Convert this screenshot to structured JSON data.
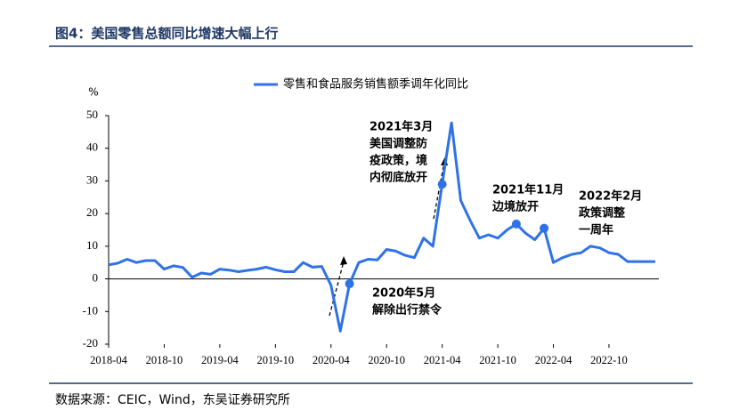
{
  "title": "图4：美国零售总额同比增速大幅上行",
  "source": "数据来源：CEIC，Wind，东吴证券研究所",
  "chart_data": {
    "type": "line",
    "y_unit": "%",
    "x": [
      "2018-04",
      "2018-05",
      "2018-06",
      "2018-07",
      "2018-08",
      "2018-09",
      "2018-10",
      "2018-11",
      "2018-12",
      "2019-01",
      "2019-02",
      "2019-03",
      "2019-04",
      "2019-05",
      "2019-06",
      "2019-07",
      "2019-08",
      "2019-09",
      "2019-10",
      "2019-11",
      "2019-12",
      "2020-01",
      "2020-02",
      "2020-03",
      "2020-04",
      "2020-05",
      "2020-06",
      "2020-07",
      "2020-08",
      "2020-09",
      "2020-10",
      "2020-11",
      "2020-12",
      "2021-01",
      "2021-02",
      "2021-03",
      "2021-04",
      "2021-05",
      "2021-06",
      "2021-07",
      "2021-08",
      "2021-09",
      "2021-10",
      "2021-11",
      "2021-12",
      "2022-01",
      "2022-02",
      "2022-03",
      "2022-04",
      "2022-05",
      "2022-06",
      "2022-07",
      "2022-08",
      "2022-09",
      "2022-10",
      "2022-11",
      "2022-12",
      "2023-01",
      "2023-02",
      "2023-03"
    ],
    "series": [
      {
        "name": "零售和食品服务销售额季调年化同比",
        "color": "#2f72e8",
        "values": [
          4.3,
          4.8,
          6.0,
          5.0,
          5.6,
          5.6,
          3.0,
          4.0,
          3.5,
          0.5,
          1.8,
          1.4,
          3.0,
          2.7,
          2.2,
          2.6,
          3.0,
          3.6,
          2.8,
          2.2,
          2.2,
          5.0,
          3.6,
          3.8,
          -2.0,
          -16.0,
          -1.5,
          5.0,
          6.0,
          5.8,
          9.0,
          8.5,
          7.2,
          6.5,
          12.5,
          10.0,
          29.0,
          47.8,
          24.0,
          18.0,
          12.5,
          13.5,
          12.5,
          15.0,
          16.8,
          14.0,
          12.0,
          15.5,
          5.0,
          6.5,
          7.5,
          8.0,
          10.0,
          9.5,
          8.0,
          7.5,
          5.3,
          5.3,
          5.3,
          5.3
        ]
      }
    ],
    "xticks": [
      "2018-04",
      "2018-10",
      "2019-04",
      "2019-10",
      "2020-04",
      "2020-10",
      "2021-04",
      "2021-10",
      "2022-04",
      "2022-10"
    ],
    "ylim": [
      -20,
      50
    ],
    "yticks": [
      -20,
      -10,
      0,
      10,
      20,
      30,
      40,
      50
    ],
    "annotations": [
      {
        "lines": [
          "2020年5月",
          "解除出行禁令"
        ],
        "x": "2020-06"
      },
      {
        "lines": [
          "2021年3月",
          "美国调整防",
          "疫政策，境",
          "内彻底放开"
        ],
        "x": "2021-04"
      },
      {
        "lines": [
          "2021年11月",
          "边境放开"
        ],
        "x": "2021-12"
      },
      {
        "lines": [
          "2022年2月",
          "政策调整",
          "一周年"
        ],
        "x": "2022-03"
      }
    ]
  }
}
